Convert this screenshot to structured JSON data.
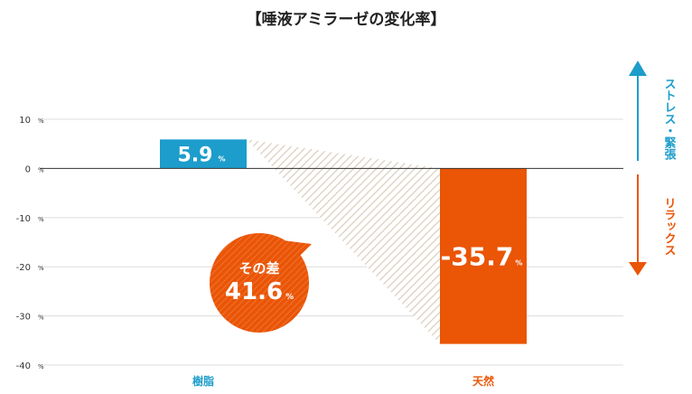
{
  "chart_data": {
    "type": "bar",
    "title": "【唾液アミラーゼの変化率】",
    "categories": [
      "樹脂",
      "天然"
    ],
    "values": [
      5.9,
      -35.7
    ],
    "value_labels": [
      "5.9",
      "-35.7"
    ],
    "unit": "%",
    "ylim": [
      -40,
      10
    ],
    "yticks": [
      10,
      0,
      -10,
      -20,
      -30,
      -40
    ],
    "tick_labels": [
      "10",
      "0",
      "-10",
      "-20",
      "-30",
      "-40"
    ],
    "grid": true,
    "colors": {
      "series": [
        "#1d9dcb",
        "#ea5506"
      ],
      "difference_bubble": "#ea5506",
      "up_arrow": "#1d9dcb",
      "down_arrow": "#ea5506",
      "hatch": "#d9cdbd"
    },
    "difference": {
      "label": "その差",
      "value": "41.6"
    },
    "arrow_labels": {
      "up": "ストレス・緊張",
      "down": "リラックス"
    }
  }
}
